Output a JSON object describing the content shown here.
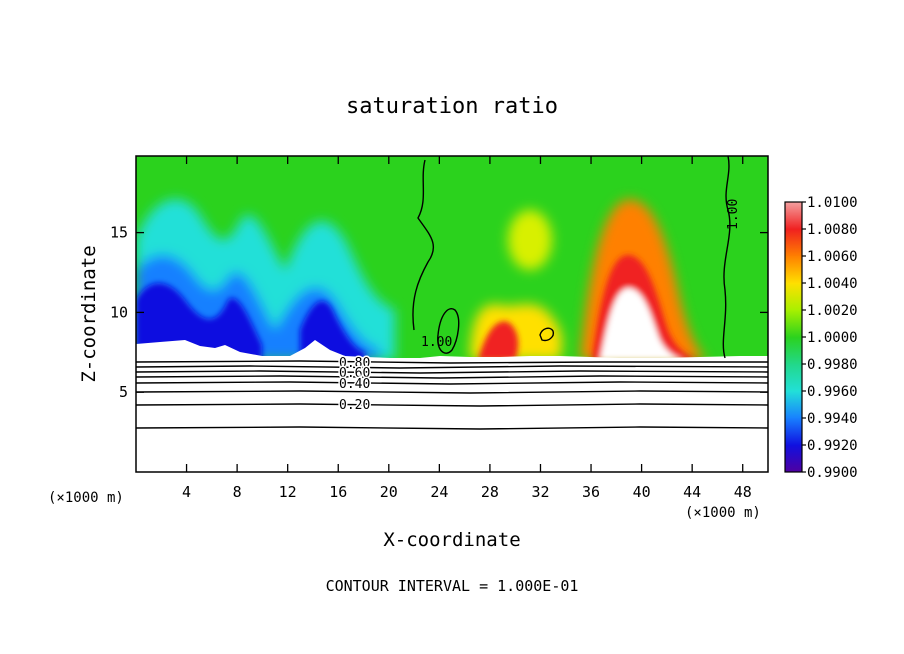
{
  "chart_data": {
    "type": "heatmap",
    "title": "saturation ratio",
    "xlabel": "X-coordinate",
    "ylabel": "Z-coordinate",
    "x_unit": "(×1000 m)",
    "xlim": [
      0,
      50
    ],
    "ylim": [
      0,
      19.8
    ],
    "xticks": [
      4,
      8,
      12,
      16,
      20,
      24,
      28,
      32,
      36,
      40,
      44,
      48
    ],
    "yticks": [
      5,
      10,
      15
    ],
    "footer": "CONTOUR INTERVAL = 1.000E-01",
    "colorbar": {
      "ticks": [
        "1.0100",
        "1.0080",
        "1.0060",
        "1.0040",
        "1.0020",
        "1.0000",
        "0.9980",
        "0.9960",
        "0.9940",
        "0.9920",
        "0.9900"
      ],
      "range": [
        0.99,
        1.01
      ],
      "colors": [
        "#f4a0a0",
        "#f02020",
        "#ff8000",
        "#ffe000",
        "#a8f000",
        "#2bd21d",
        "#22d88a",
        "#22e0d8",
        "#1880ff",
        "#1010e0",
        "#5000a0"
      ]
    },
    "contour_labels": [
      "1.00",
      "1.00",
      "0.80",
      "0.60",
      "0.40",
      "0.20"
    ],
    "contour_levels_below_cloud_base": [
      0.2,
      0.4,
      0.6,
      0.8
    ],
    "cloud_base_z": 7.3,
    "colors": {
      "background": "#2bd21d",
      "supersaturated_core": "#ffffff",
      "contour_line": "#000000"
    }
  }
}
